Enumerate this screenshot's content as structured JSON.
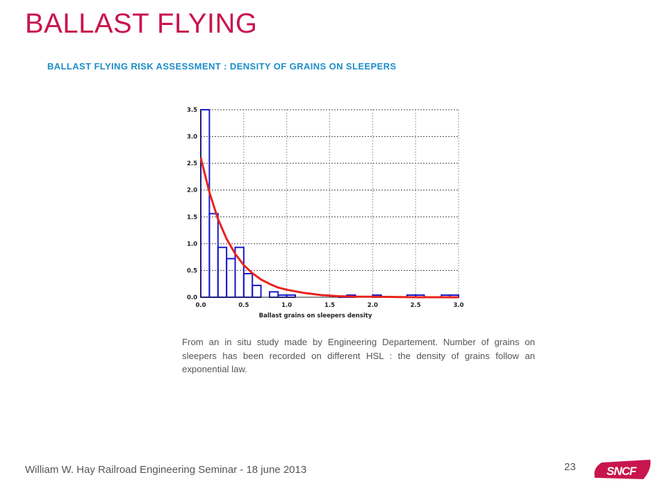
{
  "slide": {
    "title": "BALLAST FLYING",
    "subtitle": "BALLAST FLYING RISK ASSESSMENT  : DENSITY OF GRAINS ON SLEEPERS",
    "description": "From an in situ study made by Engineering Departement. Number of grains on sleepers has been recorded on different HSL : the density of grains follow an exponential law.",
    "footer": "William W. Hay Railroad Engineering Seminar - 18 june 2013",
    "page_number": "23",
    "logo_text": "SNCF"
  },
  "colors": {
    "title": "#c8154e",
    "subtitle": "#1c8ec8",
    "histogram": "#1a1acc",
    "fit_curve": "#e8221c",
    "logo": "#c8154e"
  },
  "chart_data": {
    "type": "bar",
    "subtype": "histogram with fitted exponential curve",
    "xlabel": "Ballast grains on sleepers density",
    "ylabel": "",
    "xlim": [
      0.0,
      3.0
    ],
    "ylim": [
      0.0,
      3.5
    ],
    "x_ticks": [
      "0.0",
      "0.5",
      "1.0",
      "1.5",
      "2.0",
      "2.5",
      "3.0"
    ],
    "y_ticks": [
      "0.0",
      "0.5",
      "1.0",
      "1.5",
      "2.0",
      "2.5",
      "3.0",
      "3.5"
    ],
    "grid": true,
    "bin_width": 0.1,
    "bins": [
      {
        "start": 0.0,
        "end": 0.1,
        "value": 3.5
      },
      {
        "start": 0.1,
        "end": 0.2,
        "value": 1.56
      },
      {
        "start": 0.2,
        "end": 0.3,
        "value": 0.93
      },
      {
        "start": 0.3,
        "end": 0.4,
        "value": 0.72
      },
      {
        "start": 0.4,
        "end": 0.5,
        "value": 0.93
      },
      {
        "start": 0.5,
        "end": 0.6,
        "value": 0.44
      },
      {
        "start": 0.6,
        "end": 0.7,
        "value": 0.22
      },
      {
        "start": 0.7,
        "end": 0.8,
        "value": 0.0
      },
      {
        "start": 0.8,
        "end": 0.9,
        "value": 0.1
      },
      {
        "start": 0.9,
        "end": 1.0,
        "value": 0.04
      },
      {
        "start": 1.0,
        "end": 1.1,
        "value": 0.04
      },
      {
        "start": 1.1,
        "end": 1.2,
        "value": 0.0
      },
      {
        "start": 1.2,
        "end": 1.3,
        "value": 0.0
      },
      {
        "start": 1.3,
        "end": 1.4,
        "value": 0.0
      },
      {
        "start": 1.4,
        "end": 1.5,
        "value": 0.0
      },
      {
        "start": 1.5,
        "end": 1.6,
        "value": 0.0
      },
      {
        "start": 1.6,
        "end": 1.7,
        "value": 0.02
      },
      {
        "start": 1.7,
        "end": 1.8,
        "value": 0.04
      },
      {
        "start": 1.8,
        "end": 1.9,
        "value": 0.0
      },
      {
        "start": 1.9,
        "end": 2.0,
        "value": 0.0
      },
      {
        "start": 2.0,
        "end": 2.1,
        "value": 0.04
      },
      {
        "start": 2.1,
        "end": 2.2,
        "value": 0.0
      },
      {
        "start": 2.2,
        "end": 2.3,
        "value": 0.0
      },
      {
        "start": 2.3,
        "end": 2.4,
        "value": 0.0
      },
      {
        "start": 2.4,
        "end": 2.5,
        "value": 0.04
      },
      {
        "start": 2.5,
        "end": 2.6,
        "value": 0.04
      },
      {
        "start": 2.6,
        "end": 2.7,
        "value": 0.0
      },
      {
        "start": 2.7,
        "end": 2.8,
        "value": 0.0
      },
      {
        "start": 2.8,
        "end": 2.9,
        "value": 0.04
      },
      {
        "start": 2.9,
        "end": 3.0,
        "value": 0.04
      }
    ],
    "fit": {
      "law": "exponential",
      "x": [
        0.0,
        0.1,
        0.2,
        0.3,
        0.4,
        0.5,
        0.6,
        0.7,
        0.8,
        0.9,
        1.0,
        1.2,
        1.4,
        1.6,
        1.8,
        2.0,
        2.5,
        3.0
      ],
      "y": [
        2.6,
        1.96,
        1.46,
        1.09,
        0.81,
        0.6,
        0.45,
        0.33,
        0.25,
        0.18,
        0.14,
        0.08,
        0.04,
        0.02,
        0.01,
        0.01,
        0.0,
        0.0
      ]
    }
  }
}
